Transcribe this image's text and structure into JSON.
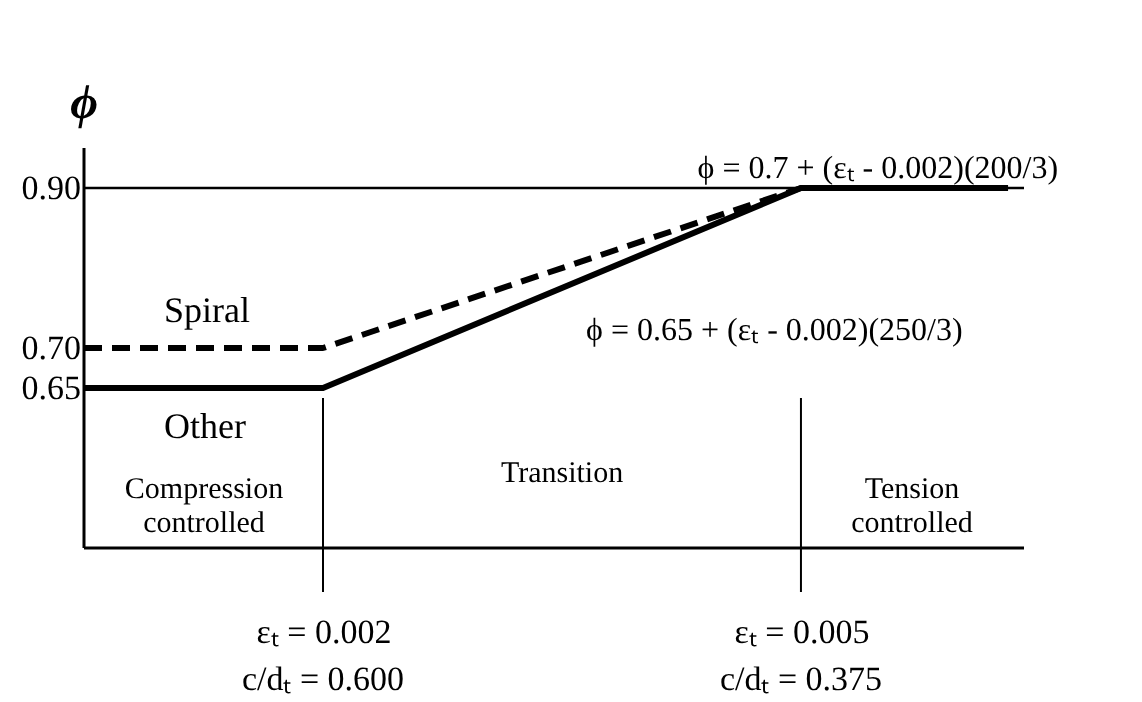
{
  "chart_data": {
    "type": "line",
    "ylabel": "ϕ",
    "series": [
      {
        "name": "Spiral",
        "color": "#000000",
        "line_style": "dashed",
        "x": [
          0.0005,
          0.002,
          0.005,
          0.0063
        ],
        "values": [
          0.7,
          0.7,
          0.9,
          0.9
        ]
      },
      {
        "name": "Other",
        "color": "#000000",
        "line_style": "solid",
        "x": [
          0.0005,
          0.002,
          0.005,
          0.0063
        ],
        "values": [
          0.65,
          0.65,
          0.9,
          0.9
        ]
      }
    ],
    "xlim": [
      0.0005,
      0.0064
    ],
    "xticks": [
      {
        "value": 0.002,
        "label": "εₜ = 0.002"
      },
      {
        "value": 0.005,
        "label": "εₜ = 0.005"
      }
    ],
    "ylim": [
      0.45,
      0.95
    ],
    "yticks": [
      {
        "value": 0.65,
        "label": "0.65"
      },
      {
        "value": 0.7,
        "label": "0.70"
      },
      {
        "value": 0.9,
        "label": "0.90"
      }
    ],
    "ref_lines": [
      {
        "axis": "y",
        "value": 0.9,
        "color": "#000000"
      },
      {
        "axis": "x",
        "value": 0.002,
        "color": "#000000"
      },
      {
        "axis": "x",
        "value": 0.005,
        "color": "#000000"
      }
    ],
    "annotations": [
      {
        "text": "ϕ = 0.7 + (εₜ - 0.002)(200/3)",
        "x": 0.0041,
        "y": 0.83
      },
      {
        "text": "ϕ = 0.65 + (εₜ - 0.002)(250/3)",
        "x": 0.0033,
        "y": 0.758
      },
      "Compression controlled",
      "Transition",
      "Tension controlled",
      "c/dₜ = 0.600",
      "c/dₜ = 0.375"
    ],
    "grid": false,
    "legend": false
  }
}
